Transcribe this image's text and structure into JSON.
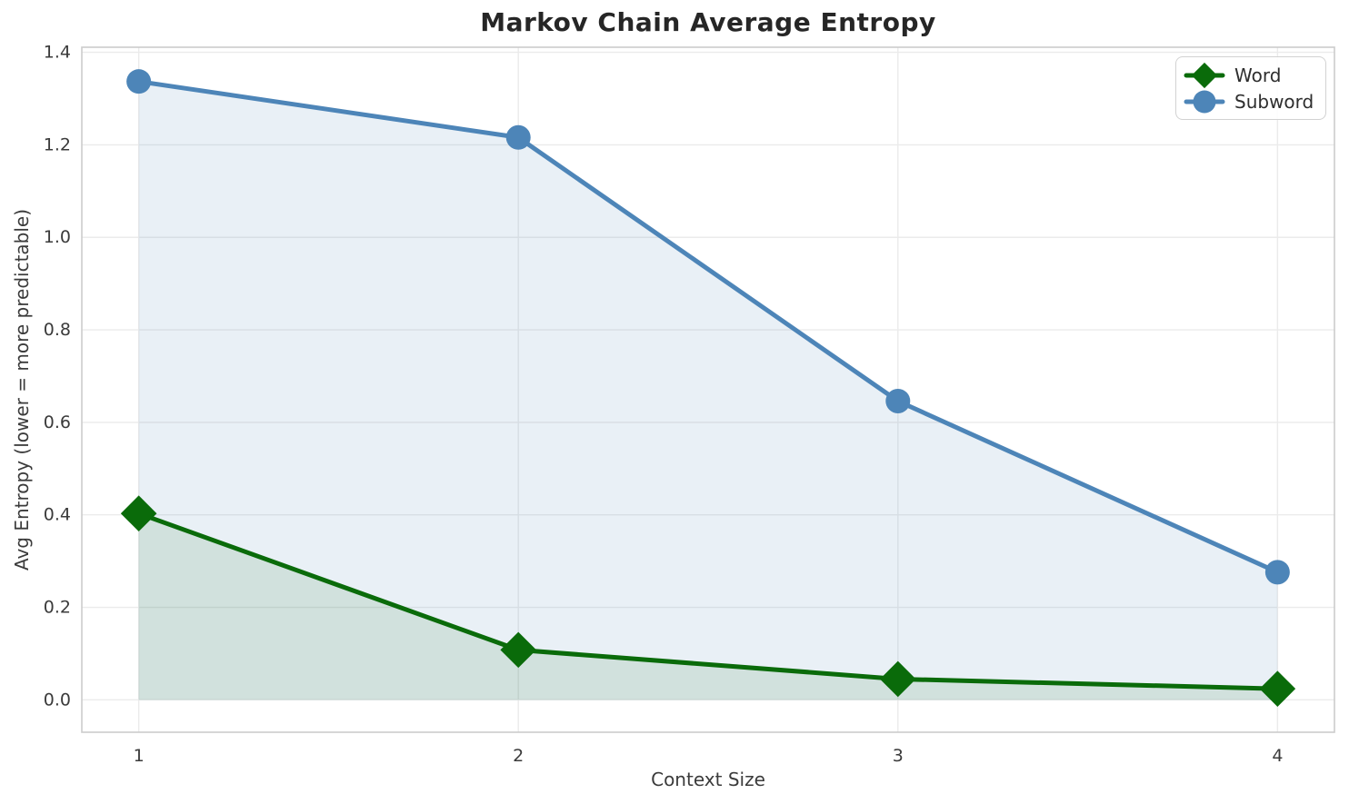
{
  "chart_data": {
    "type": "line",
    "title": "Markov Chain Average Entropy",
    "xlabel": "Context Size",
    "ylabel": "Avg Entropy (lower = more predictable)",
    "x": [
      1,
      2,
      3,
      4
    ],
    "series": [
      {
        "name": "Word",
        "marker": "diamond",
        "color": "#0a6b0a",
        "fill": "rgba(0,100,0,0.10)",
        "values": [
          0.403,
          0.108,
          0.045,
          0.024
        ]
      },
      {
        "name": "Subword",
        "marker": "circle",
        "color": "#4d85b8",
        "fill": "rgba(70,130,180,0.12)",
        "values": [
          1.337,
          1.216,
          0.646,
          0.276
        ]
      }
    ],
    "fill_baseline": 0,
    "xticks": {
      "values": [
        1,
        2,
        3,
        4
      ],
      "labels": [
        "1",
        "2",
        "3",
        "4"
      ]
    },
    "yticks": {
      "values": [
        0.0,
        0.2,
        0.4,
        0.6,
        0.8,
        1.0,
        1.2,
        1.4
      ],
      "labels": [
        "0.0",
        "0.2",
        "0.4",
        "0.6",
        "0.8",
        "1.0",
        "1.2",
        "1.4"
      ]
    },
    "xlim": [
      0.85,
      4.15
    ],
    "ylim": [
      -0.07,
      1.411
    ],
    "grid": true,
    "legend": {
      "position": "top-right",
      "items": [
        "Word",
        "Subword"
      ]
    },
    "styles": {
      "grid_color": "#ebebeb",
      "spine_color": "#cccccc",
      "tick_color": "#3b3b3b",
      "line_width": 5
    }
  }
}
